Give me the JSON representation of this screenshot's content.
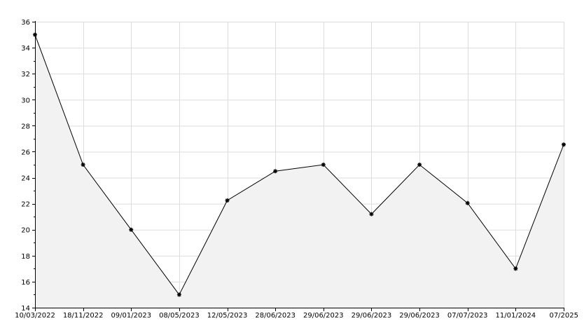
{
  "chart_data": {
    "type": "area",
    "x_labels": [
      "10/03/2022",
      "18/11/2022",
      "09/01/2023",
      "08/05/2023",
      "12/05/2023",
      "28/06/2023",
      "29/06/2023",
      "29/06/2023",
      "29/06/2023",
      "07/07/2023",
      "11/01/2024",
      "07/2025"
    ],
    "values": [
      35,
      25,
      20,
      15,
      22.25,
      24.5,
      25,
      21.2,
      25,
      22.05,
      17,
      26.55
    ],
    "y_ticks": [
      14,
      16,
      18,
      20,
      22,
      24,
      26,
      28,
      30,
      32,
      34,
      36
    ],
    "ylim": [
      14,
      36
    ],
    "grid": true,
    "colors": {
      "line": "#000000",
      "fill": "#f2f2f2",
      "grid": "#dddddd",
      "axis": "#000000"
    }
  }
}
